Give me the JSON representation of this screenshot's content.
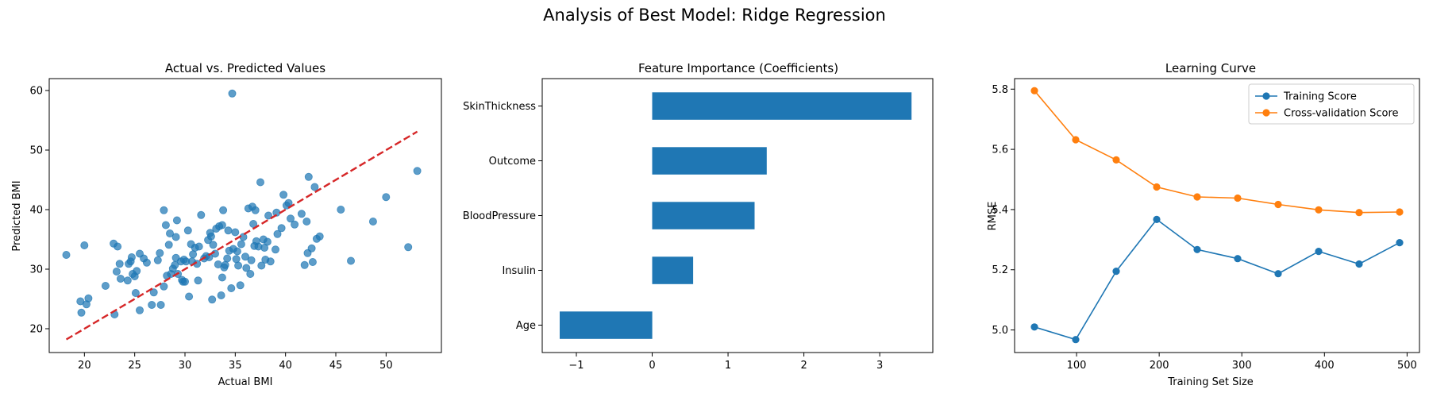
{
  "figure": {
    "suptitle": "Analysis of Best Model: Ridge Regression"
  },
  "chart_data": [
    {
      "type": "scatter",
      "title": "Actual vs. Predicted Values",
      "xlabel": "Actual BMI",
      "ylabel": "Predicted BMI",
      "xlim": [
        16.5,
        55.5
      ],
      "ylim": [
        16.0,
        62.0
      ],
      "xticks": [
        20,
        25,
        30,
        35,
        40,
        45,
        50
      ],
      "yticks": [
        20,
        30,
        40,
        50,
        60
      ],
      "point_color": "#1f77b4",
      "points": [
        [
          18.2,
          32.4
        ],
        [
          19.6,
          24.6
        ],
        [
          19.7,
          22.7
        ],
        [
          20.0,
          34.0
        ],
        [
          20.2,
          24.1
        ],
        [
          20.4,
          25.1
        ],
        [
          22.1,
          27.2
        ],
        [
          22.9,
          34.3
        ],
        [
          23.0,
          22.4
        ],
        [
          23.2,
          29.6
        ],
        [
          23.3,
          33.8
        ],
        [
          23.5,
          30.9
        ],
        [
          23.6,
          28.4
        ],
        [
          24.3,
          28.1
        ],
        [
          24.4,
          30.9
        ],
        [
          24.6,
          31.3
        ],
        [
          24.7,
          32.0
        ],
        [
          24.8,
          29.2
        ],
        [
          25.0,
          28.8
        ],
        [
          25.1,
          26.0
        ],
        [
          25.2,
          29.7
        ],
        [
          25.5,
          32.6
        ],
        [
          25.5,
          23.1
        ],
        [
          25.9,
          31.8
        ],
        [
          26.2,
          31.1
        ],
        [
          26.7,
          24.0
        ],
        [
          26.9,
          26.1
        ],
        [
          27.3,
          31.5
        ],
        [
          27.5,
          32.7
        ],
        [
          27.6,
          24.0
        ],
        [
          27.9,
          27.1
        ],
        [
          27.9,
          39.9
        ],
        [
          28.1,
          37.4
        ],
        [
          28.2,
          28.9
        ],
        [
          28.4,
          34.1
        ],
        [
          28.5,
          36.0
        ],
        [
          28.6,
          29.2
        ],
        [
          28.8,
          30.1
        ],
        [
          29.0,
          30.7
        ],
        [
          29.1,
          35.4
        ],
        [
          29.1,
          31.9
        ],
        [
          29.2,
          38.2
        ],
        [
          29.3,
          29.2
        ],
        [
          29.6,
          31.3
        ],
        [
          29.7,
          28.2
        ],
        [
          29.8,
          27.9
        ],
        [
          29.9,
          31.6
        ],
        [
          30.0,
          27.9
        ],
        [
          30.1,
          31.3
        ],
        [
          30.3,
          36.5
        ],
        [
          30.4,
          25.4
        ],
        [
          30.6,
          34.2
        ],
        [
          30.7,
          31.3
        ],
        [
          30.8,
          32.5
        ],
        [
          31.0,
          33.6
        ],
        [
          31.2,
          30.9
        ],
        [
          31.3,
          28.1
        ],
        [
          31.4,
          33.8
        ],
        [
          31.6,
          39.1
        ],
        [
          31.9,
          31.8
        ],
        [
          32.1,
          32.2
        ],
        [
          32.3,
          34.9
        ],
        [
          32.4,
          32.0
        ],
        [
          32.5,
          36.1
        ],
        [
          32.6,
          35.5
        ],
        [
          32.7,
          24.9
        ],
        [
          32.8,
          34.1
        ],
        [
          33.0,
          32.6
        ],
        [
          33.1,
          36.8
        ],
        [
          33.3,
          30.8
        ],
        [
          33.4,
          37.2
        ],
        [
          33.6,
          25.6
        ],
        [
          33.7,
          28.6
        ],
        [
          33.7,
          37.4
        ],
        [
          33.8,
          39.9
        ],
        [
          33.9,
          30.3
        ],
        [
          34.0,
          30.7
        ],
        [
          34.2,
          31.8
        ],
        [
          34.3,
          36.5
        ],
        [
          34.4,
          33.1
        ],
        [
          34.6,
          26.8
        ],
        [
          34.7,
          59.5
        ],
        [
          34.8,
          33.4
        ],
        [
          35.0,
          36.2
        ],
        [
          35.1,
          31.7
        ],
        [
          35.2,
          33.0
        ],
        [
          35.3,
          30.6
        ],
        [
          35.5,
          27.3
        ],
        [
          35.6,
          34.2
        ],
        [
          35.8,
          35.4
        ],
        [
          36.0,
          32.1
        ],
        [
          36.1,
          30.2
        ],
        [
          36.3,
          40.2
        ],
        [
          36.5,
          29.2
        ],
        [
          36.6,
          31.5
        ],
        [
          36.7,
          40.5
        ],
        [
          36.8,
          37.6
        ],
        [
          36.9,
          33.9
        ],
        [
          37.0,
          39.9
        ],
        [
          37.1,
          34.7
        ],
        [
          37.3,
          33.8
        ],
        [
          37.5,
          44.6
        ],
        [
          37.6,
          30.6
        ],
        [
          37.8,
          35.0
        ],
        [
          37.9,
          33.6
        ],
        [
          38.0,
          31.6
        ],
        [
          38.2,
          34.6
        ],
        [
          38.3,
          39.0
        ],
        [
          38.5,
          31.3
        ],
        [
          39.0,
          33.3
        ],
        [
          39.1,
          39.5
        ],
        [
          39.2,
          35.9
        ],
        [
          39.6,
          36.9
        ],
        [
          39.8,
          42.5
        ],
        [
          40.1,
          40.7
        ],
        [
          40.3,
          41.1
        ],
        [
          40.5,
          38.5
        ],
        [
          40.9,
          37.5
        ],
        [
          41.6,
          39.3
        ],
        [
          41.9,
          30.7
        ],
        [
          42.1,
          38.0
        ],
        [
          42.2,
          32.7
        ],
        [
          42.3,
          45.5
        ],
        [
          42.6,
          33.5
        ],
        [
          42.7,
          31.2
        ],
        [
          42.9,
          43.8
        ],
        [
          43.1,
          35.1
        ],
        [
          43.4,
          35.5
        ],
        [
          45.5,
          40.0
        ],
        [
          46.5,
          31.4
        ],
        [
          48.7,
          38.0
        ],
        [
          50.0,
          42.1
        ],
        [
          52.2,
          33.7
        ],
        [
          53.1,
          46.5
        ]
      ],
      "line": {
        "x": [
          18.2,
          53.1
        ],
        "y": [
          18.2,
          53.1
        ],
        "color": "#d62728",
        "dashed": true
      }
    },
    {
      "type": "bar",
      "orientation": "horizontal",
      "title": "Feature Importance (Coefficients)",
      "xlabel": "",
      "ylabel": "",
      "categories": [
        "SkinThickness",
        "Outcome",
        "BloodPressure",
        "Insulin",
        "Age"
      ],
      "values": [
        3.42,
        1.51,
        1.35,
        0.54,
        -1.22
      ],
      "xlim": [
        -1.45,
        3.7
      ],
      "xticks": [
        -1,
        0,
        1,
        2,
        3
      ],
      "xtick_labels": [
        "−1",
        "0",
        "1",
        "2",
        "3"
      ],
      "bar_color": "#1f77b4"
    },
    {
      "type": "line",
      "title": "Learning Curve",
      "xlabel": "Training Set Size",
      "ylabel": "RMSE",
      "xlim": [
        25,
        515
      ],
      "ylim": [
        4.925,
        5.835
      ],
      "xticks": [
        100,
        200,
        300,
        400,
        500
      ],
      "yticks": [
        5.0,
        5.2,
        5.4,
        5.6,
        5.8
      ],
      "ytick_labels": [
        "5.0",
        "5.2",
        "5.4",
        "5.6",
        "5.8"
      ],
      "x": [
        49,
        99,
        148,
        197,
        246,
        295,
        344,
        393,
        442,
        491
      ],
      "legend_position": "upper right",
      "series": [
        {
          "name": "Training Score",
          "color": "#1f77b4",
          "values": [
            5.01,
            4.968,
            5.195,
            5.367,
            5.267,
            5.237,
            5.187,
            5.261,
            5.219,
            5.29
          ]
        },
        {
          "name": "Cross-validation Score",
          "color": "#ff7f0e",
          "values": [
            5.795,
            5.632,
            5.565,
            5.475,
            5.442,
            5.438,
            5.417,
            5.399,
            5.39,
            5.392
          ]
        }
      ]
    }
  ]
}
